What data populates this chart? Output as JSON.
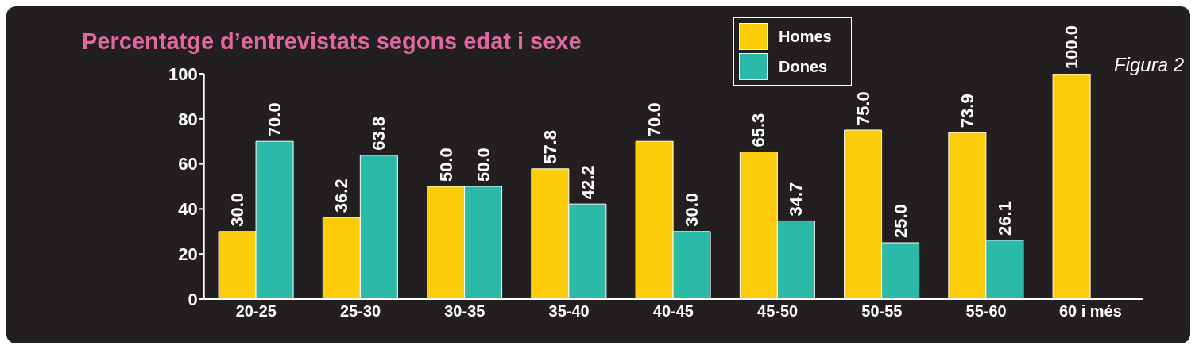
{
  "chart_data": {
    "type": "bar",
    "title": "Percentatge d’entrevistats segons edat i sexe",
    "annotations": [
      "Figura 2"
    ],
    "categories": [
      "20-25",
      "25-30",
      "30-35",
      "35-40",
      "40-45",
      "45-50",
      "50-55",
      "55-60",
      "60 i més"
    ],
    "series": [
      {
        "name": "Homes",
        "color": "#fccb0a",
        "values": [
          30.0,
          36.2,
          50.0,
          57.8,
          70.0,
          65.3,
          75.0,
          73.9,
          100.0
        ],
        "value_labels": [
          "30.0",
          "36.2",
          "50.0",
          "57.8",
          "70.0",
          "65.3",
          "75.0",
          "73.9",
          "100.0"
        ]
      },
      {
        "name": "Dones",
        "color": "#2bbaa8",
        "values": [
          70.0,
          63.8,
          50.0,
          42.2,
          30.0,
          34.7,
          25.0,
          26.1,
          null
        ],
        "value_labels": [
          "70.0",
          "63.8",
          "50.0",
          "42.2",
          "30.0",
          "34.7",
          "25.0",
          "26.1",
          null
        ]
      }
    ],
    "ylim": [
      0,
      100
    ],
    "yticks": [
      0,
      20,
      40,
      60,
      80,
      100
    ],
    "grid": false,
    "legend": "top"
  }
}
